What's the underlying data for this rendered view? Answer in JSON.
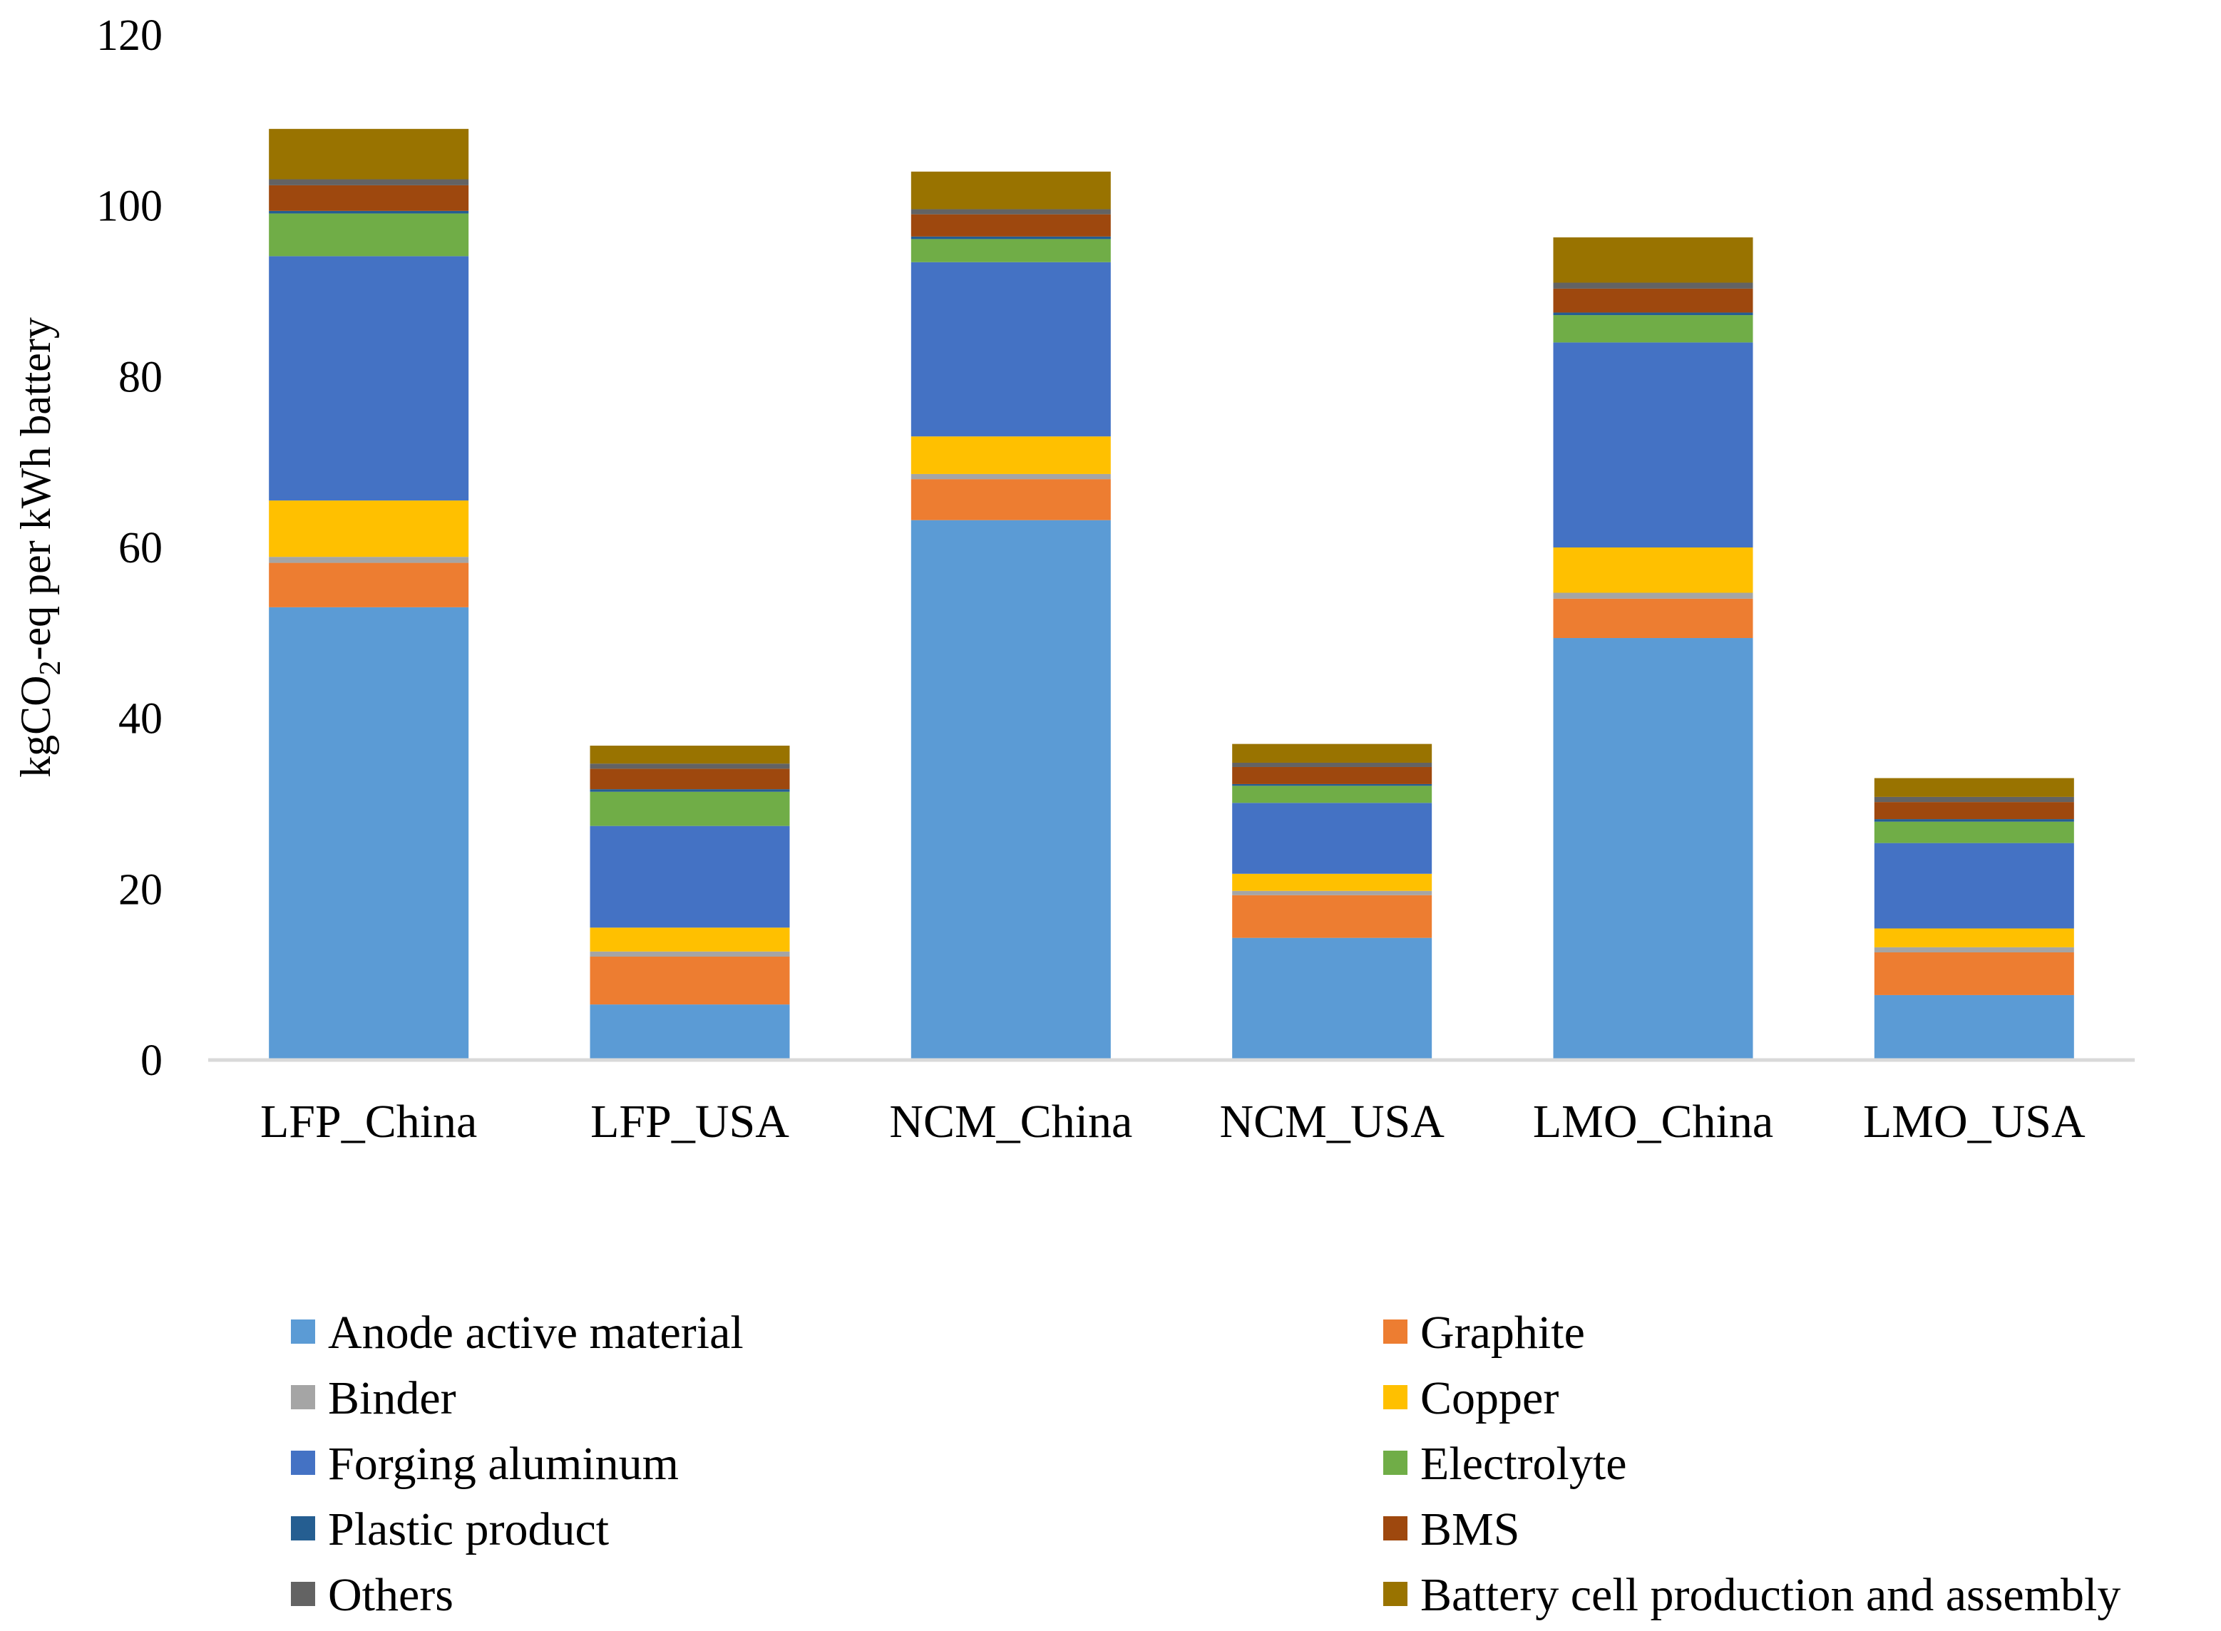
{
  "chart_data": {
    "type": "bar",
    "stacked": true,
    "categories": [
      "LFP_China",
      "LFP_USA",
      "NCM_China",
      "NCM_USA",
      "LMO_China",
      "LMO_USA"
    ],
    "ylabel": {
      "prefix": "kgCO",
      "sub": "2",
      "suffix": "-eq per kWh battery"
    },
    "ylim": [
      0,
      120
    ],
    "yticks": [
      0,
      20,
      40,
      60,
      80,
      100,
      120
    ],
    "ytick_labels": [
      "0",
      "20",
      "40",
      "60",
      "80",
      "100",
      "120"
    ],
    "grid": false,
    "legend_position": "bottom",
    "series": [
      {
        "name": "Anode active material",
        "color": "#5B9BD5",
        "values": [
          53.0,
          6.5,
          63.2,
          14.3,
          49.4,
          7.6
        ]
      },
      {
        "name": "Graphite",
        "color": "#ED7D31",
        "values": [
          5.2,
          5.6,
          4.8,
          5.0,
          4.6,
          5.0
        ]
      },
      {
        "name": "Binder",
        "color": "#A5A5A5",
        "values": [
          0.7,
          0.6,
          0.6,
          0.5,
          0.7,
          0.6
        ]
      },
      {
        "name": "Copper",
        "color": "#FFC000",
        "values": [
          6.6,
          2.8,
          4.4,
          2.0,
          5.3,
          2.2
        ]
      },
      {
        "name": "Forging aluminum",
        "color": "#4472C4",
        "values": [
          28.6,
          11.9,
          20.4,
          8.3,
          24.0,
          10.0
        ]
      },
      {
        "name": "Electrolyte",
        "color": "#70AD47",
        "values": [
          5.0,
          4.0,
          2.7,
          2.0,
          3.2,
          2.5
        ]
      },
      {
        "name": "Plastic product",
        "color": "#255E91",
        "values": [
          0.3,
          0.3,
          0.3,
          0.2,
          0.3,
          0.3
        ]
      },
      {
        "name": "BMS",
        "color": "#9E480E",
        "values": [
          3.0,
          2.4,
          2.6,
          2.0,
          2.8,
          2.0
        ]
      },
      {
        "name": "Others",
        "color": "#636363",
        "values": [
          0.7,
          0.6,
          0.6,
          0.5,
          0.7,
          0.6
        ]
      },
      {
        "name": "Battery cell production and assembly",
        "color": "#997300",
        "values": [
          5.9,
          2.1,
          4.4,
          2.2,
          5.3,
          2.2
        ]
      }
    ]
  }
}
